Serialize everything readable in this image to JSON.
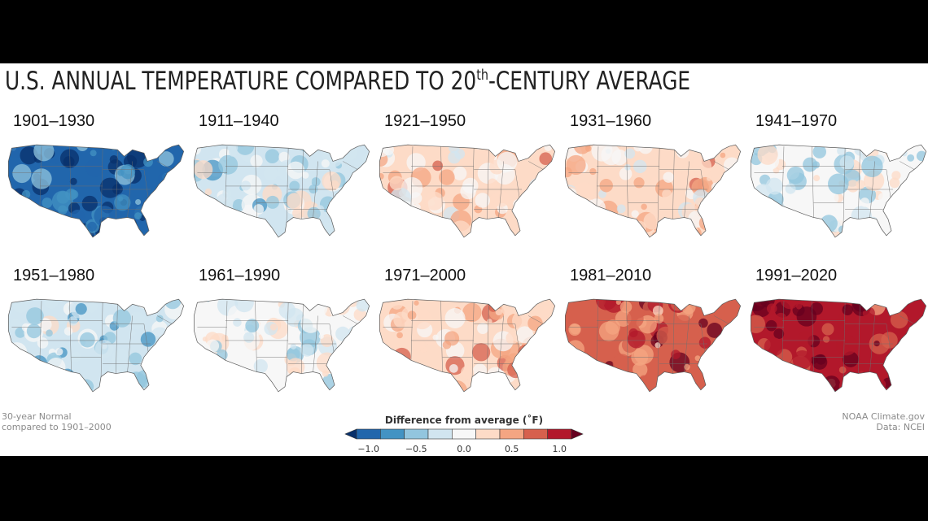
{
  "title": {
    "prefix": "U.S. ANNUAL TEMPERATURE COMPARED TO 20",
    "sup": "th",
    "suffix": "-CENTURY AVERAGE"
  },
  "maps": [
    {
      "label": "1901–1930",
      "anomaly": -0.9
    },
    {
      "label": "1911–1940",
      "anomaly": -0.2
    },
    {
      "label": "1921–1950",
      "anomaly": 0.2
    },
    {
      "label": "1931–1960",
      "anomaly": 0.2
    },
    {
      "label": "1941–1970",
      "anomaly": -0.1
    },
    {
      "label": "1951–1980",
      "anomaly": -0.3
    },
    {
      "label": "1961–1990",
      "anomaly": -0.1
    },
    {
      "label": "1971–2000",
      "anomaly": 0.3
    },
    {
      "label": "1981–2010",
      "anomaly": 0.8
    },
    {
      "label": "1991–2020",
      "anomaly": 1.0
    }
  ],
  "note_left": [
    "30-year Normal",
    "compared to 1901–2000"
  ],
  "note_right": [
    "NOAA Climate.gov",
    "Data: NCEI"
  ],
  "legend": {
    "title": "Difference from average (˚F)",
    "colors": [
      "#08306b",
      "#2166ac",
      "#4393c3",
      "#92c5de",
      "#d1e5f0",
      "#f7f7f7",
      "#fddbc7",
      "#f4a582",
      "#d6604d",
      "#b2182b",
      "#67001f"
    ],
    "ticks": [
      "−1.0",
      "−0.5",
      "0.0",
      "0.5",
      "1.0"
    ]
  }
}
